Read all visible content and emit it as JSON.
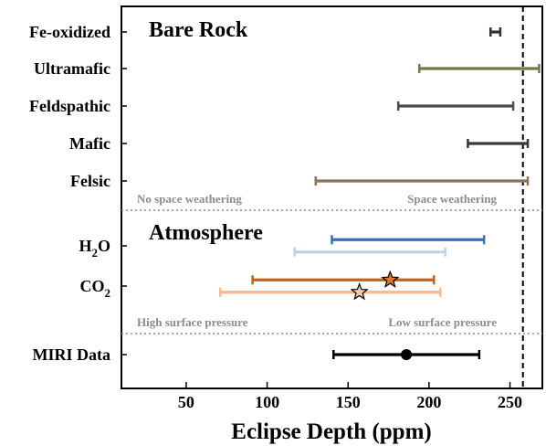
{
  "chart_data": {
    "type": "errorbar",
    "xlabel": "Eclipse Depth (ppm)",
    "xlim": [
      10,
      270
    ],
    "xticks": [
      50,
      100,
      150,
      200,
      250
    ],
    "vline": 258,
    "rows": [
      {
        "label": "Fe-oxidized",
        "label_sub": ""
      },
      {
        "label": "Ultramafic",
        "label_sub": ""
      },
      {
        "label": "Feldspathic",
        "label_sub": ""
      },
      {
        "label": "Mafic",
        "label_sub": ""
      },
      {
        "label": "Felsic",
        "label_sub": ""
      },
      {
        "label": "H",
        "label_sub": "2",
        "label_tail": "O"
      },
      {
        "label": "CO",
        "label_sub": "2",
        "label_tail": ""
      },
      {
        "label": "MIRI Data",
        "label_sub": ""
      }
    ],
    "series": [
      {
        "row": 0,
        "lo": 238,
        "hi": 244,
        "color": "#3a2f2a"
      },
      {
        "row": 1,
        "lo": 194,
        "hi": 268,
        "color": "#6f7a4a"
      },
      {
        "row": 2,
        "lo": 181,
        "hi": 252,
        "color": "#4d4d4d"
      },
      {
        "row": 3,
        "lo": 224,
        "hi": 261,
        "color": "#3a3835"
      },
      {
        "row": 4,
        "lo": 130,
        "hi": 261,
        "color": "#8a7558"
      },
      {
        "row": 5,
        "offset": -0.3,
        "lo": 140,
        "hi": 234,
        "color": "#3b6fb0"
      },
      {
        "row": 5,
        "offset": 0.3,
        "lo": 117,
        "hi": 210,
        "color": "#bcd2ea"
      },
      {
        "row": 6,
        "offset": -0.3,
        "lo": 91,
        "hi": 203,
        "center": 176,
        "marker": "star",
        "color": "#c8600f",
        "marker_fill": "#e07828"
      },
      {
        "row": 6,
        "offset": 0.3,
        "lo": 71,
        "hi": 207,
        "center": 157,
        "marker": "star",
        "color": "#f4b98e",
        "marker_fill": "#f6c9a6"
      },
      {
        "row": 7,
        "lo": 141,
        "hi": 231,
        "center": 186,
        "marker": "circle",
        "color": "#000000",
        "marker_fill": "#000000"
      }
    ],
    "section_titles": [
      "Bare Rock",
      "Atmosphere"
    ],
    "annotations": [
      "No space weathering",
      "Space weathering",
      "High surface pressure",
      "Low surface pressure"
    ]
  }
}
